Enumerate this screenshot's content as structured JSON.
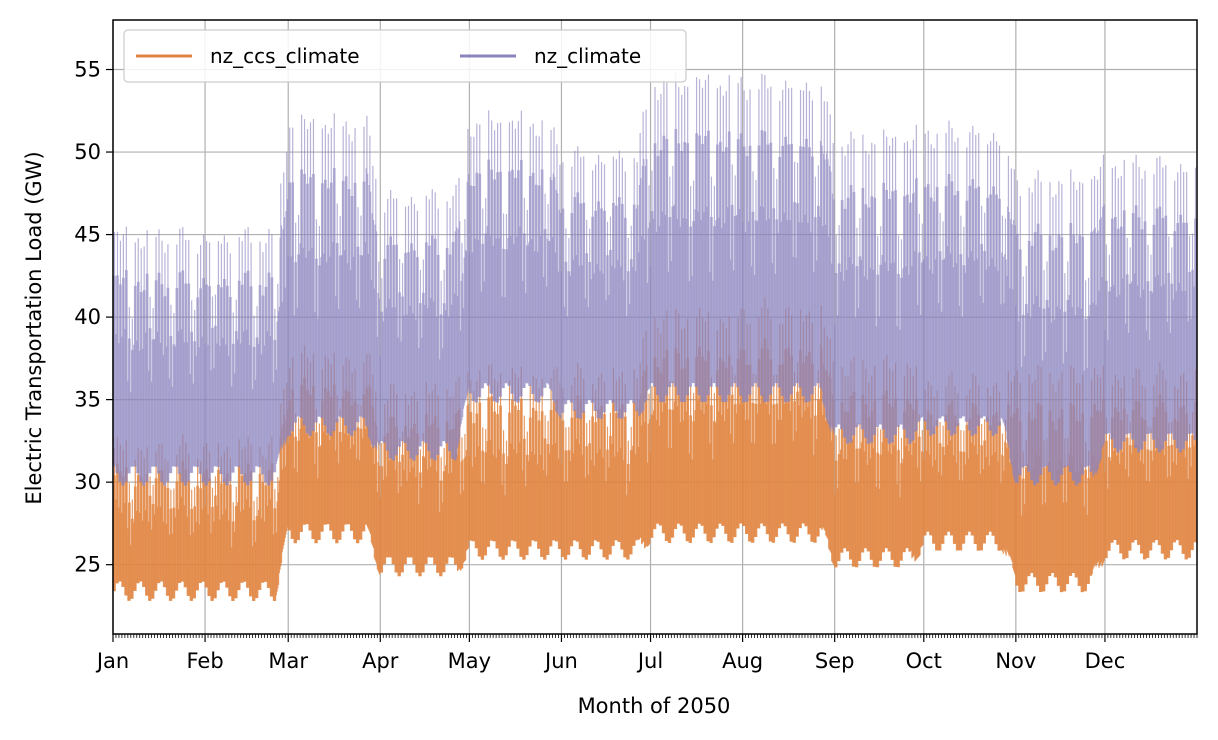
{
  "chart_data": {
    "type": "area",
    "title": "",
    "xlabel": "Month of 2050",
    "ylabel": "Electric Transportation Load (GW)",
    "ylim": [
      20.8,
      58
    ],
    "yticks": [
      25,
      30,
      35,
      40,
      45,
      50,
      55
    ],
    "xlim": [
      0,
      365
    ],
    "month_labels": [
      "Jan",
      "Feb",
      "Mar",
      "Apr",
      "May",
      "Jun",
      "Jul",
      "Aug",
      "Sep",
      "Oct",
      "Nov",
      "Dec"
    ],
    "month_starts": [
      0,
      31,
      59,
      90,
      120,
      151,
      181,
      212,
      243,
      273,
      304,
      334
    ],
    "grid": true,
    "legend_position": "upper-left",
    "series": [
      {
        "name": "nz_ccs_climate",
        "color": "#E0843F",
        "months": [
          "Jan",
          "Feb",
          "Mar",
          "Apr",
          "May",
          "Jun",
          "Jul",
          "Aug",
          "Sep",
          "Oct",
          "Nov",
          "Dec"
        ],
        "min": [
          23,
          23,
          26.5,
          24.5,
          25.5,
          25.5,
          26.5,
          26.5,
          25,
          26,
          23.5,
          25.5
        ],
        "max": [
          32.5,
          32.5,
          38,
          36,
          37,
          37,
          40.5,
          41,
          37.5,
          36.5,
          37,
          37
        ]
      },
      {
        "name": "nz_climate",
        "color": "#8A85BF",
        "months": [
          "Jan",
          "Feb",
          "Mar",
          "Apr",
          "May",
          "Jun",
          "Jul",
          "Aug",
          "Sep",
          "Oct",
          "Nov",
          "Dec"
        ],
        "min": [
          30,
          30,
          33,
          31.5,
          35,
          34,
          35,
          35,
          32.5,
          33,
          30,
          32
        ],
        "max": [
          45.5,
          45.5,
          52.5,
          48,
          52.5,
          50.5,
          55,
          55,
          51.5,
          52,
          49,
          50
        ]
      }
    ]
  }
}
